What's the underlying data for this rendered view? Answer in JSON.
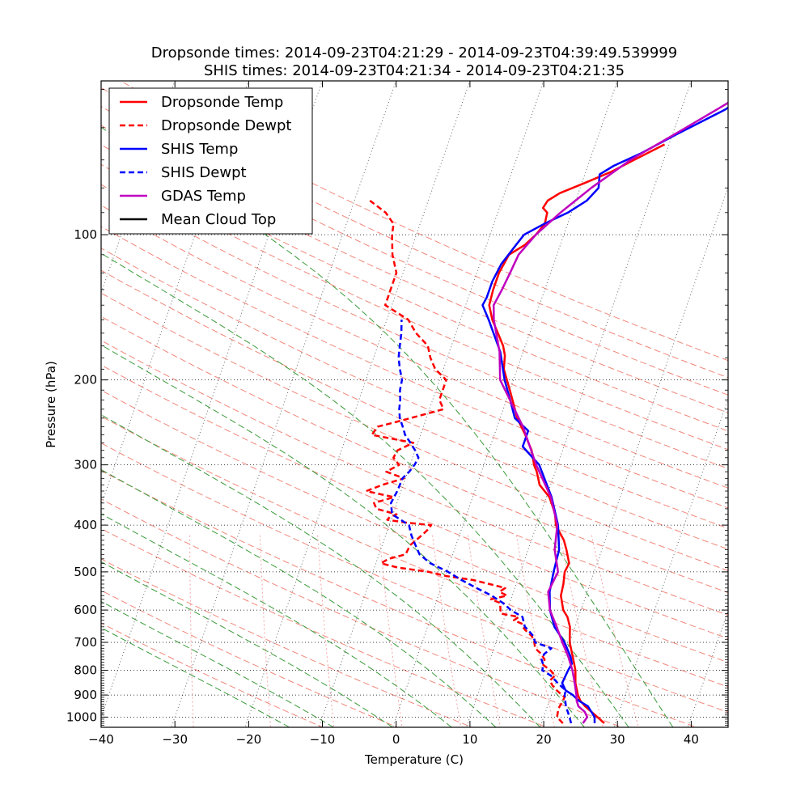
{
  "chart_data": {
    "type": "line",
    "subtype": "skew-T log-P diagram",
    "title_lines": [
      "Dropsonde times: 2014-09-23T04:21:29 - 2014-09-23T04:39:49.539999",
      "SHIS times: 2014-09-23T04:21:34 - 2014-09-23T04:21:35"
    ],
    "xlabel": "Temperature (C)",
    "ylabel": "Pressure (hPa)",
    "xlim": [
      -40,
      45
    ],
    "ylim": [
      1050,
      48
    ],
    "x_ticks": [
      -40,
      -30,
      -20,
      -10,
      0,
      10,
      20,
      30,
      40
    ],
    "y_ticks": [
      100,
      200,
      300,
      400,
      500,
      600,
      700,
      800,
      900,
      1000
    ],
    "grid": true,
    "legend_position": "top-left",
    "colors": {
      "dropsonde": "#ff0000",
      "shis": "#0000ff",
      "gdas": "#bf00bf",
      "cloud_top": "#000000",
      "dry_adiabat": "#f0867a",
      "moist_adiabat": "#3a9a3a",
      "mixing_ratio": "#f4a3a3",
      "isotherm": "#666666"
    },
    "series": [
      {
        "name": "Dropsonde Temp",
        "style": "solid",
        "color": "#ff0000",
        "points": [
          [
            1030,
            28.5
          ],
          [
            1000,
            27.3
          ],
          [
            950,
            25.1
          ],
          [
            925,
            24.2
          ],
          [
            900,
            23.6
          ],
          [
            850,
            22.7
          ],
          [
            800,
            22.1
          ],
          [
            750,
            21.1
          ],
          [
            700,
            20.0
          ],
          [
            650,
            19.3
          ],
          [
            620,
            18.5
          ],
          [
            600,
            17.6
          ],
          [
            560,
            16.6
          ],
          [
            530,
            16.4
          ],
          [
            500,
            16.0
          ],
          [
            480,
            16.2
          ],
          [
            450,
            15.2
          ],
          [
            430,
            14.4
          ],
          [
            400,
            12.6
          ],
          [
            380,
            12.0
          ],
          [
            370,
            11.5
          ],
          [
            350,
            10.4
          ],
          [
            330,
            8.5
          ],
          [
            310,
            7.5
          ],
          [
            300,
            6.8
          ],
          [
            280,
            5.8
          ],
          [
            270,
            5.0
          ],
          [
            260,
            4.2
          ],
          [
            240,
            2.3
          ],
          [
            225,
            1.2
          ],
          [
            210,
            0.0
          ],
          [
            190,
            -1.8
          ],
          [
            178,
            -2.3
          ],
          [
            170,
            -3.0
          ],
          [
            160,
            -4.3
          ],
          [
            150,
            -5.7
          ],
          [
            140,
            -6.8
          ],
          [
            130,
            -7.0
          ],
          [
            120,
            -7.0
          ],
          [
            110,
            -6.5
          ],
          [
            105,
            -4.8
          ],
          [
            100,
            -3.8
          ],
          [
            95,
            -3.1
          ],
          [
            90,
            -3.3
          ],
          [
            88,
            -4.1
          ],
          [
            85,
            -3.8
          ],
          [
            82,
            -2.5
          ],
          [
            78,
            0.5
          ],
          [
            74,
            3.5
          ],
          [
            70,
            6.0
          ],
          [
            67,
            8.0
          ],
          [
            65,
            9.4
          ]
        ]
      },
      {
        "name": "Dropsonde Dewpt",
        "style": "dashed",
        "color": "#ff0000",
        "points": [
          [
            1030,
            22.9
          ],
          [
            1000,
            21.8
          ],
          [
            960,
            21.6
          ],
          [
            930,
            21.8
          ],
          [
            910,
            21.9
          ],
          [
            880,
            20.5
          ],
          [
            860,
            19.7
          ],
          [
            840,
            19.1
          ],
          [
            820,
            19.6
          ],
          [
            800,
            18.7
          ],
          [
            780,
            17.5
          ],
          [
            760,
            17.4
          ],
          [
            740,
            16.7
          ],
          [
            720,
            15.6
          ],
          [
            700,
            15.2
          ],
          [
            680,
            14.6
          ],
          [
            660,
            13.4
          ],
          [
            650,
            12.9
          ],
          [
            640,
            12.6
          ],
          [
            630,
            11.4
          ],
          [
            620,
            11.9
          ],
          [
            610,
            9.3
          ],
          [
            600,
            9.1
          ],
          [
            580,
            8.7
          ],
          [
            570,
            7.3
          ],
          [
            560,
            9.3
          ],
          [
            550,
            8.1
          ],
          [
            540,
            8.7
          ],
          [
            530,
            6.4
          ],
          [
            520,
            4.0
          ],
          [
            510,
            0.1
          ],
          [
            500,
            -2.4
          ],
          [
            490,
            -6.8
          ],
          [
            480,
            -9.3
          ],
          [
            470,
            -8.5
          ],
          [
            460,
            -6.4
          ],
          [
            440,
            -6.2
          ],
          [
            420,
            -5.1
          ],
          [
            410,
            -4.6
          ],
          [
            400,
            -4.3
          ],
          [
            395,
            -8.0
          ],
          [
            390,
            -10.5
          ],
          [
            385,
            -10.3
          ],
          [
            380,
            -9.5
          ],
          [
            370,
            -12.5
          ],
          [
            360,
            -13.1
          ],
          [
            350,
            -10.7
          ],
          [
            340,
            -14.7
          ],
          [
            330,
            -12.8
          ],
          [
            320,
            -10.2
          ],
          [
            310,
            -12.9
          ],
          [
            300,
            -11.5
          ],
          [
            290,
            -12.6
          ],
          [
            280,
            -12.4
          ],
          [
            270,
            -10.6
          ],
          [
            260,
            -16.6
          ],
          [
            250,
            -16.2
          ],
          [
            245,
            -14.1
          ],
          [
            230,
            -8.1
          ],
          [
            220,
            -9.1
          ],
          [
            210,
            -9.1
          ],
          [
            200,
            -9.1
          ],
          [
            190,
            -11.1
          ],
          [
            180,
            -12.3
          ],
          [
            170,
            -13.2
          ],
          [
            160,
            -15.4
          ],
          [
            150,
            -17.1
          ],
          [
            140,
            -20.9
          ],
          [
            130,
            -20.9
          ],
          [
            120,
            -20.9
          ],
          [
            110,
            -22.3
          ],
          [
            100,
            -23.3
          ],
          [
            95,
            -23.6
          ],
          [
            90,
            -25.2
          ],
          [
            85,
            -27.9
          ]
        ]
      },
      {
        "name": "SHIS Temp",
        "style": "solid",
        "color": "#0000ff",
        "points": [
          [
            1030,
            27.2
          ],
          [
            1000,
            26.9
          ],
          [
            950,
            25.5
          ],
          [
            925,
            24.0
          ],
          [
            900,
            22.9
          ],
          [
            880,
            21.7
          ],
          [
            850,
            20.9
          ],
          [
            800,
            21.1
          ],
          [
            775,
            21.3
          ],
          [
            750,
            20.8
          ],
          [
            700,
            19.3
          ],
          [
            650,
            17.2
          ],
          [
            600,
            15.8
          ],
          [
            550,
            14.9
          ],
          [
            500,
            14.5
          ],
          [
            450,
            14.2
          ],
          [
            400,
            12.9
          ],
          [
            350,
            10.7
          ],
          [
            300,
            7.5
          ],
          [
            275,
            4.4
          ],
          [
            255,
            4.4
          ],
          [
            240,
            2.0
          ],
          [
            220,
            0.5
          ],
          [
            200,
            -1.2
          ],
          [
            175,
            -3.1
          ],
          [
            150,
            -6.2
          ],
          [
            140,
            -7.7
          ],
          [
            135,
            -7.5
          ],
          [
            125,
            -7.5
          ],
          [
            115,
            -7.1
          ],
          [
            105,
            -6.0
          ],
          [
            100,
            -5.4
          ],
          [
            95,
            -3.2
          ],
          [
            90,
            -0.5
          ],
          [
            85,
            1.5
          ],
          [
            80,
            2.5
          ],
          [
            75,
            2.0
          ],
          [
            72,
            3.5
          ],
          [
            68,
            6.5
          ],
          [
            62,
            10.5
          ],
          [
            55,
            16.0
          ],
          [
            50,
            19.0
          ],
          [
            46,
            20.0
          ]
        ]
      },
      {
        "name": "SHIS Dewpt",
        "style": "dashed",
        "color": "#0000ff",
        "points": [
          [
            1030,
            24.0
          ],
          [
            1000,
            23.5
          ],
          [
            950,
            22.5
          ],
          [
            900,
            21.8
          ],
          [
            880,
            21.7
          ],
          [
            850,
            20.3
          ],
          [
            820,
            19.0
          ],
          [
            800,
            17.6
          ],
          [
            780,
            17.5
          ],
          [
            760,
            17.0
          ],
          [
            740,
            17.1
          ],
          [
            720,
            17.8
          ],
          [
            700,
            15.3
          ],
          [
            680,
            14.8
          ],
          [
            660,
            13.8
          ],
          [
            650,
            13.2
          ],
          [
            620,
            12.4
          ],
          [
            600,
            10.5
          ],
          [
            580,
            9.1
          ],
          [
            560,
            7.2
          ],
          [
            540,
            4.8
          ],
          [
            520,
            2.4
          ],
          [
            500,
            0.2
          ],
          [
            480,
            -2.6
          ],
          [
            460,
            -4.5
          ],
          [
            440,
            -5.5
          ],
          [
            420,
            -6.5
          ],
          [
            400,
            -7.3
          ],
          [
            380,
            -10.1
          ],
          [
            360,
            -10.8
          ],
          [
            340,
            -10.5
          ],
          [
            320,
            -10.4
          ],
          [
            310,
            -9.8
          ],
          [
            300,
            -9.4
          ],
          [
            290,
            -9.2
          ],
          [
            280,
            -10.0
          ],
          [
            270,
            -11.0
          ],
          [
            260,
            -12.1
          ],
          [
            250,
            -12.8
          ],
          [
            240,
            -13.6
          ],
          [
            230,
            -14.1
          ],
          [
            220,
            -14.4
          ],
          [
            210,
            -14.9
          ],
          [
            200,
            -15.1
          ],
          [
            190,
            -15.9
          ],
          [
            180,
            -16.6
          ],
          [
            170,
            -17.0
          ],
          [
            160,
            -17.4
          ],
          [
            150,
            -18.0
          ]
        ]
      },
      {
        "name": "GDAS Temp",
        "style": "solid",
        "color": "#bf00bf",
        "points": [
          [
            1030,
            25.6
          ],
          [
            1000,
            25.9
          ],
          [
            975,
            25.3
          ],
          [
            950,
            24.2
          ],
          [
            925,
            23.7
          ],
          [
            900,
            23.4
          ],
          [
            850,
            22.6
          ],
          [
            800,
            21.7
          ],
          [
            750,
            20.5
          ],
          [
            700,
            19.0
          ],
          [
            650,
            17.5
          ],
          [
            600,
            15.8
          ],
          [
            550,
            14.7
          ],
          [
            500,
            15.1
          ],
          [
            450,
            13.6
          ],
          [
            400,
            12.8
          ],
          [
            350,
            10.6
          ],
          [
            300,
            7.1
          ],
          [
            250,
            3.5
          ],
          [
            200,
            -1.8
          ],
          [
            175,
            -3.2
          ],
          [
            150,
            -5.5
          ],
          [
            140,
            -6.2
          ],
          [
            130,
            -5.8
          ],
          [
            120,
            -5.5
          ],
          [
            110,
            -5.2
          ],
          [
            100,
            -3.8
          ],
          [
            90,
            -1.5
          ],
          [
            80,
            1.5
          ],
          [
            70,
            5.5
          ],
          [
            60,
            11.5
          ],
          [
            50,
            18.5
          ],
          [
            47,
            20.0
          ]
        ]
      },
      {
        "name": "Mean Cloud Top",
        "style": "solid",
        "color": "#000000",
        "points": []
      }
    ],
    "background_lines": {
      "isotherms_every": 10,
      "dry_adiabats_theta_k": [
        260,
        270,
        280,
        290,
        300,
        310,
        320,
        330,
        340,
        350,
        360,
        370,
        380,
        390,
        400,
        410,
        420,
        430,
        440,
        450,
        460,
        470,
        480,
        490
      ],
      "moist_adiabats_surface_t": [
        -14,
        -8,
        0,
        8,
        14,
        20,
        26,
        32,
        38
      ],
      "mixing_ratios_gkg": [
        0.4,
        1,
        2,
        4,
        7,
        10,
        16,
        24,
        32
      ]
    }
  }
}
